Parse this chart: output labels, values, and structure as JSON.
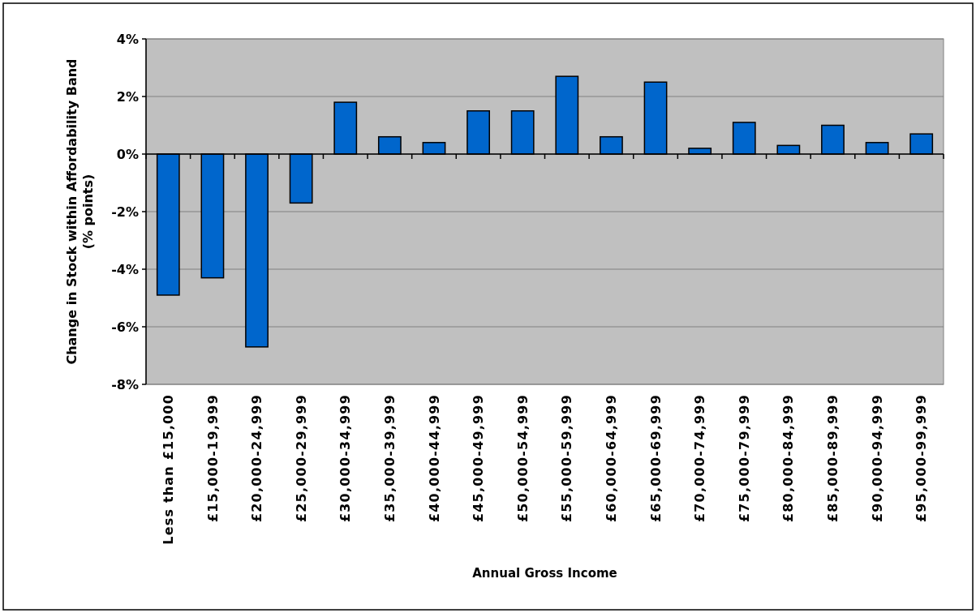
{
  "chart_data": {
    "type": "bar",
    "xlabel": "Annual Gross Income",
    "ylabel": "Change in Stock within Affordability Band\n(% points)",
    "categories": [
      "Less than £15,000",
      "£15,000-19,999",
      "£20,000-24,999",
      "£25,000-29,999",
      "£30,000-34,999",
      "£35,000-39,999",
      "£40,000-44,999",
      "£45,000-49,999",
      "£50,000-54,999",
      "£55,000-59,999",
      "£60,000-64,999",
      "£65,000-69,999",
      "£70,000-74,999",
      "£75,000-79,999",
      "£80,000-84,999",
      "£85,000-89,999",
      "£90,000-94,999",
      "£95,000-99,999"
    ],
    "values": [
      -4.9,
      -4.3,
      -6.7,
      -1.7,
      1.8,
      0.6,
      0.4,
      1.5,
      1.5,
      2.7,
      0.6,
      2.5,
      0.2,
      1.1,
      0.3,
      1.0,
      0.4,
      0.7
    ],
    "color": "#0066cc",
    "ylim": [
      -8,
      4
    ],
    "yticks": [
      {
        "value": -8,
        "label": "-8%"
      },
      {
        "value": -6,
        "label": "-6%"
      },
      {
        "value": -4,
        "label": "-4%"
      },
      {
        "value": -2,
        "label": "-2%"
      },
      {
        "value": 0,
        "label": "0%"
      },
      {
        "value": 2,
        "label": "2%"
      },
      {
        "value": 4,
        "label": "4%"
      }
    ],
    "grid": "y"
  }
}
